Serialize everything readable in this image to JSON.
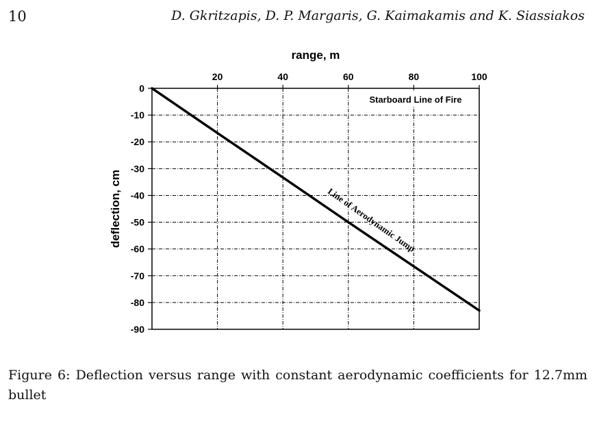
{
  "page": {
    "number": "10",
    "running_header": "D. Gkritzapis, D. P. Margaris, G. Kaimakamis and K. Siassiakos"
  },
  "caption": "Figure 6: Deflection versus range with constant aerodynamic coefficients for 12.7mm bullet",
  "chart_data": {
    "type": "line",
    "xlabel": "range, m",
    "ylabel": "deflection, cm",
    "xlim": [
      0,
      100
    ],
    "ylim": [
      -90,
      0
    ],
    "x_ticks": [
      "20",
      "40",
      "60",
      "80",
      "100"
    ],
    "y_ticks": [
      "0",
      "-10",
      "-20",
      "-30",
      "-40",
      "-50",
      "-60",
      "-70",
      "-80",
      "-90"
    ],
    "x_axis_position": "top",
    "grid": true,
    "annotations": [
      "Starboard Line of Fire",
      "Line of Aerodynamic Jump"
    ],
    "series": [
      {
        "x": [
          0,
          20,
          40,
          60,
          80,
          100
        ],
        "y": [
          0,
          -16.7,
          -33.3,
          -50,
          -66.5,
          -83
        ],
        "color": "#000000"
      }
    ]
  }
}
